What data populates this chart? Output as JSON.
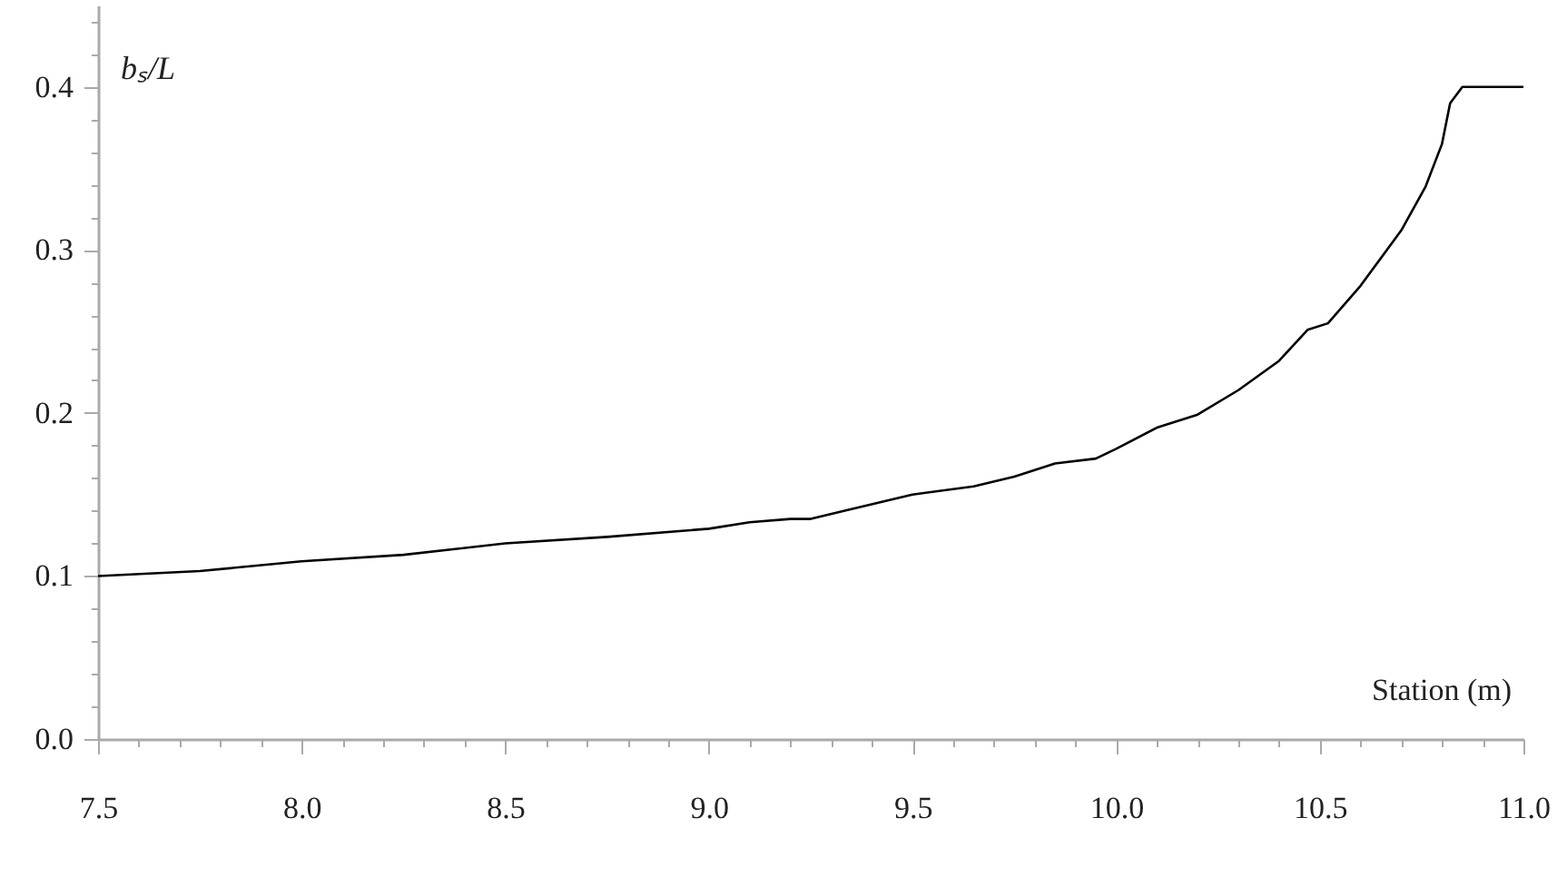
{
  "chart_data": {
    "type": "line",
    "xlabel": "Station (m)",
    "ylabel": "bₛ/L",
    "x": [
      7.5,
      7.75,
      8.0,
      8.25,
      8.5,
      8.75,
      9.0,
      9.1,
      9.2,
      9.25,
      9.35,
      9.5,
      9.65,
      9.75,
      9.85,
      9.95,
      10.0,
      10.1,
      10.2,
      10.3,
      10.4,
      10.47,
      10.52,
      10.6,
      10.7,
      10.76,
      10.8,
      10.82,
      10.85,
      11.0
    ],
    "series": [
      {
        "color": "#000000",
        "values": [
          0.1,
          0.103,
          0.109,
          0.113,
          0.12,
          0.124,
          0.129,
          0.133,
          0.135,
          0.135,
          0.141,
          0.15,
          0.155,
          0.161,
          0.169,
          0.172,
          0.178,
          0.191,
          0.199,
          0.214,
          0.232,
          0.251,
          0.255,
          0.278,
          0.312,
          0.339,
          0.365,
          0.39,
          0.4,
          0.4
        ]
      }
    ],
    "xlim": [
      7.5,
      11.0
    ],
    "xticks": [
      7.5,
      {
        "value": 7.6,
        "label": null
      },
      {
        "value": 7.7,
        "label": null
      },
      {
        "value": 7.8,
        "label": null
      },
      {
        "value": 7.9,
        "label": null
      },
      {
        "value": 8,
        "label": "8.0"
      },
      {
        "value": 8.1,
        "label": null
      },
      {
        "value": 8.2,
        "label": null
      },
      {
        "value": 8.3,
        "label": null
      },
      {
        "value": 8.4,
        "label": null
      },
      8.5,
      {
        "value": 8.6,
        "label": null
      },
      {
        "value": 8.7,
        "label": null
      },
      {
        "value": 8.8,
        "label": null
      },
      {
        "value": 8.9,
        "label": null
      },
      {
        "value": 9,
        "label": "9.0"
      },
      {
        "value": 9.1,
        "label": null
      },
      {
        "value": 9.2,
        "label": null
      },
      {
        "value": 9.3,
        "label": null
      },
      {
        "value": 9.4,
        "label": null
      },
      9.5,
      {
        "value": 9.6,
        "label": null
      },
      {
        "value": 9.7,
        "label": null
      },
      {
        "value": 9.8,
        "label": null
      },
      {
        "value": 9.9,
        "label": null
      },
      {
        "value": 10,
        "label": "10.0"
      },
      {
        "value": 10.1,
        "label": null
      },
      {
        "value": 10.2,
        "label": null
      },
      {
        "value": 10.3,
        "label": null
      },
      {
        "value": 10.4,
        "label": null
      },
      10.5,
      {
        "value": 10.6,
        "label": null
      },
      {
        "value": 10.7,
        "label": null
      },
      {
        "value": 10.8,
        "label": null
      },
      {
        "value": 10.9,
        "label": null
      },
      {
        "value": 11,
        "label": "11.0"
      }
    ],
    "ylim": [
      0,
      0.45
    ],
    "yticks": [
      {
        "value": 0,
        "label": "0.0"
      },
      {
        "value": 0.02,
        "label": null
      },
      {
        "value": 0.04,
        "label": null
      },
      {
        "value": 0.06,
        "label": null
      },
      {
        "value": 0.08,
        "label": null
      },
      0.1,
      {
        "value": 0.12,
        "label": null
      },
      {
        "value": 0.14,
        "label": null
      },
      {
        "value": 0.16,
        "label": null
      },
      {
        "value": 0.18,
        "label": null
      },
      0.2,
      {
        "value": 0.22,
        "label": null
      },
      {
        "value": 0.24,
        "label": null
      },
      {
        "value": 0.26,
        "label": null
      },
      {
        "value": 0.28,
        "label": null
      },
      0.3,
      {
        "value": 0.32,
        "label": null
      },
      {
        "value": 0.34,
        "label": null
      },
      {
        "value": 0.36,
        "label": null
      },
      {
        "value": 0.38,
        "label": null
      },
      0.4,
      {
        "value": 0.42,
        "label": null
      },
      {
        "value": 0.44,
        "label": null
      }
    ],
    "grid": false,
    "legend": false,
    "marker": "none",
    "line_style": "solid"
  }
}
